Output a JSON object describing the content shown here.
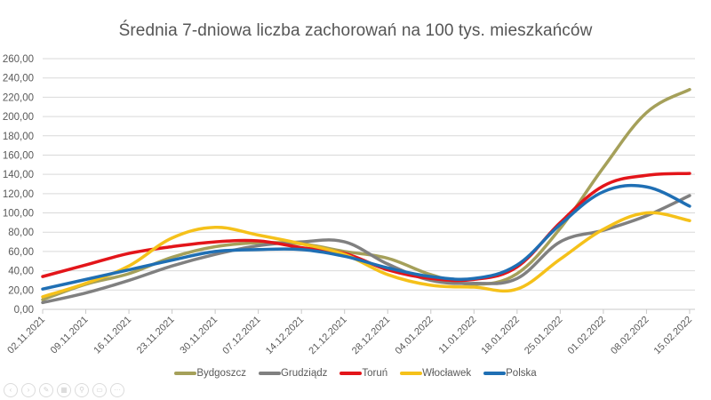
{
  "title": "Średnia 7-dniowa liczba zachorowań na 100 tys. mieszkańców",
  "chart_data": {
    "type": "line",
    "title": "Średnia 7-dniowa liczba zachorowań na 100 tys. mieszkańców",
    "xlabel": "",
    "ylabel": "",
    "ylim": [
      0,
      260
    ],
    "ytick_step": 20,
    "ytick_labels": [
      "0,00",
      "20,00",
      "40,00",
      "60,00",
      "80,00",
      "100,00",
      "120,00",
      "140,00",
      "160,00",
      "180,00",
      "200,00",
      "220,00",
      "240,00",
      "260,00"
    ],
    "grid": true,
    "legend_position": "bottom",
    "categories": [
      "02.11.2021",
      "09.11.2021",
      "16.11.2021",
      "23.11.2021",
      "30.11.2021",
      "07.12.2021",
      "14.12.2021",
      "21.12.2021",
      "28.12.2021",
      "04.01.2022",
      "11.01.2022",
      "18.01.2022",
      "25.01.2022",
      "01.02.2022",
      "08.02.2022",
      "15.02.2022"
    ],
    "series": [
      {
        "name": "Bydgoszcz",
        "color": "#a5a05a",
        "values": [
          10,
          26,
          37,
          54,
          65,
          69,
          68,
          60,
          53,
          36,
          26,
          37,
          84,
          147,
          204,
          228
        ]
      },
      {
        "name": "Grudziądz",
        "color": "#808080",
        "values": [
          7,
          17,
          30,
          45,
          57,
          66,
          70,
          70,
          47,
          30,
          27,
          32,
          70,
          82,
          97,
          118
        ]
      },
      {
        "name": "Toruń",
        "color": "#e3151a",
        "values": [
          34,
          46,
          58,
          65,
          70,
          71,
          64,
          58,
          41,
          32,
          31,
          44,
          90,
          128,
          139,
          141
        ]
      },
      {
        "name": "Włocławek",
        "color": "#f5c11a",
        "values": [
          13,
          27,
          45,
          74,
          85,
          77,
          68,
          57,
          36,
          25,
          23,
          21,
          52,
          83,
          100,
          92
        ]
      },
      {
        "name": "Polska",
        "color": "#1f6fb4",
        "values": [
          21,
          31,
          41,
          51,
          60,
          62,
          62,
          55,
          43,
          34,
          32,
          46,
          88,
          122,
          127,
          107
        ]
      }
    ]
  },
  "legend": [
    {
      "label": "Bydgoszcz",
      "color": "#a5a05a"
    },
    {
      "label": "Grudziądz",
      "color": "#808080"
    },
    {
      "label": "Toruń",
      "color": "#e3151a"
    },
    {
      "label": "Włocławek",
      "color": "#f5c11a"
    },
    {
      "label": "Polska",
      "color": "#1f6fb4"
    }
  ],
  "toolbar": {
    "buttons": [
      {
        "name": "previous-slide",
        "glyph": "‹"
      },
      {
        "name": "next-slide",
        "glyph": "›"
      },
      {
        "name": "pen",
        "glyph": "✎"
      },
      {
        "name": "see-all-slides",
        "glyph": "▦"
      },
      {
        "name": "zoom",
        "glyph": "⚲"
      },
      {
        "name": "screen",
        "glyph": "▭"
      },
      {
        "name": "more-options",
        "glyph": "···"
      }
    ]
  }
}
